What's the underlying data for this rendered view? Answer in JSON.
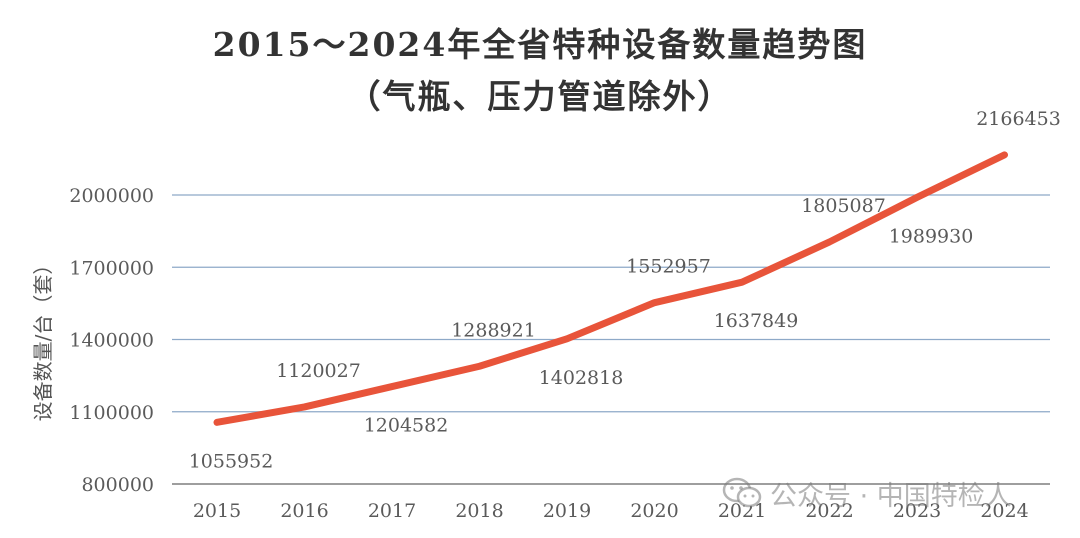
{
  "chart_data": {
    "type": "line",
    "title": "2015～2024年全省特种设备数量趋势图",
    "subtitle": "（气瓶、压力管道除外）",
    "xlabel": "",
    "ylabel": "设备数量/台（套）",
    "categories": [
      "2015",
      "2016",
      "2017",
      "2018",
      "2019",
      "2020",
      "2021",
      "2022",
      "2023",
      "2024"
    ],
    "series": [
      {
        "values": [
          1055952,
          1120027,
          1204582,
          1288921,
          1402818,
          1552957,
          1637849,
          1805087,
          1989930,
          2166453
        ],
        "color": "#e8543a"
      }
    ],
    "ylim": [
      800000,
      2200000
    ],
    "yticks": [
      "800000",
      "1100000",
      "1400000",
      "1700000",
      "2000000"
    ],
    "ytick_values": [
      800000,
      1100000,
      1400000,
      1700000,
      2000000
    ],
    "data_labels": [
      "1055952",
      "1120027",
      "1204582",
      "1288921",
      "1402818",
      "1552957",
      "1637849",
      "1805087",
      "1989930",
      "2166453"
    ],
    "grid": true,
    "legend": "none",
    "gridline_color": "#8ea9c8",
    "axis_color": "#7f7f7f"
  },
  "watermark": {
    "text": "公众号 · 中国特检人",
    "icon": "wechat-icon"
  }
}
